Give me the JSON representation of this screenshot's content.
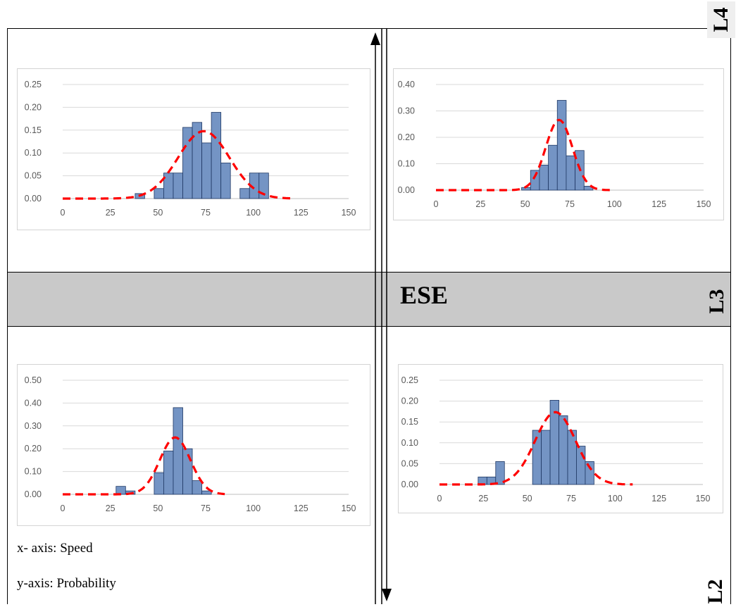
{
  "band_label": "ESE",
  "side_labels": {
    "top": "L4",
    "middle": "L3",
    "bottom": "L2"
  },
  "notes": {
    "x_axis": "x- axis: Speed",
    "y_axis": "y-axis: Probability"
  },
  "colors": {
    "bar_fill": "#7494c4",
    "bar_stroke": "#1f3864",
    "curve": "#ff0000",
    "grid": "#d9d9d9",
    "band": "#c9c9c9"
  },
  "chart_data": [
    {
      "type": "bar",
      "panel": "top-left",
      "bin_width": 5,
      "x_ticks": [
        "0",
        "25",
        "50",
        "75",
        "100",
        "125",
        "150"
      ],
      "xlim": [
        0,
        150
      ],
      "y_ticks": [
        "0.00",
        "0.05",
        "0.10",
        "0.15",
        "0.20",
        "0.25"
      ],
      "ylim": [
        0,
        0.25
      ],
      "bins": [
        {
          "x": 38,
          "y": 0.011
        },
        {
          "x": 48,
          "y": 0.022
        },
        {
          "x": 53,
          "y": 0.056
        },
        {
          "x": 58,
          "y": 0.056
        },
        {
          "x": 63,
          "y": 0.156
        },
        {
          "x": 68,
          "y": 0.167
        },
        {
          "x": 73,
          "y": 0.122
        },
        {
          "x": 78,
          "y": 0.189
        },
        {
          "x": 83,
          "y": 0.078
        },
        {
          "x": 88,
          "y": 0.0
        },
        {
          "x": 93,
          "y": 0.022
        },
        {
          "x": 98,
          "y": 0.0
        },
        {
          "x": 98,
          "y": 0.056
        },
        {
          "x": 103,
          "y": 0.056
        }
      ],
      "curve": {
        "mean": 74,
        "sd": 13.5,
        "x": [
          0,
          120
        ]
      }
    },
    {
      "type": "bar",
      "panel": "top-right",
      "bin_width": 5,
      "x_ticks": [
        "0",
        "25",
        "50",
        "75",
        "100",
        "125",
        "150"
      ],
      "xlim": [
        0,
        150
      ],
      "y_ticks": [
        "0.00",
        "0.10",
        "0.20",
        "0.30",
        "0.40"
      ],
      "ylim": [
        0,
        0.4
      ],
      "bins": [
        {
          "x": 48,
          "y": 0.01
        },
        {
          "x": 53,
          "y": 0.075
        },
        {
          "x": 58,
          "y": 0.095
        },
        {
          "x": 63,
          "y": 0.17
        },
        {
          "x": 68,
          "y": 0.34
        },
        {
          "x": 73,
          "y": 0.13
        },
        {
          "x": 78,
          "y": 0.15
        },
        {
          "x": 83,
          "y": 0.015
        }
      ],
      "curve": {
        "mean": 69,
        "sd": 7.5,
        "x": [
          0,
          100
        ]
      }
    },
    {
      "type": "bar",
      "panel": "bottom-left",
      "bin_width": 5,
      "x_ticks": [
        "0",
        "25",
        "50",
        "75",
        "100",
        "125",
        "150"
      ],
      "xlim": [
        0,
        150
      ],
      "y_ticks": [
        "0.00",
        "0.10",
        "0.20",
        "0.30",
        "0.40",
        "0.50"
      ],
      "ylim": [
        0,
        0.5
      ],
      "bins": [
        {
          "x": 28,
          "y": 0.035
        },
        {
          "x": 33,
          "y": 0.015
        },
        {
          "x": 48,
          "y": 0.095
        },
        {
          "x": 53,
          "y": 0.19
        },
        {
          "x": 58,
          "y": 0.38
        },
        {
          "x": 63,
          "y": 0.2
        },
        {
          "x": 68,
          "y": 0.06
        },
        {
          "x": 73,
          "y": 0.015
        }
      ],
      "curve": {
        "mean": 59,
        "sd": 8,
        "x": [
          0,
          85
        ]
      }
    },
    {
      "type": "bar",
      "panel": "bottom-right",
      "bin_width": 5,
      "x_ticks": [
        "0",
        "25",
        "50",
        "75",
        "100",
        "125",
        "150"
      ],
      "xlim": [
        0,
        150
      ],
      "y_ticks": [
        "0.00",
        "0.05",
        "0.10",
        "0.15",
        "0.20",
        "0.25"
      ],
      "ylim": [
        0,
        0.25
      ],
      "bins": [
        {
          "x": 22,
          "y": 0.018
        },
        {
          "x": 27,
          "y": 0.018
        },
        {
          "x": 32,
          "y": 0.055
        },
        {
          "x": 53,
          "y": 0.13
        },
        {
          "x": 58,
          "y": 0.13
        },
        {
          "x": 63,
          "y": 0.202
        },
        {
          "x": 68,
          "y": 0.165
        },
        {
          "x": 73,
          "y": 0.13
        },
        {
          "x": 78,
          "y": 0.092
        },
        {
          "x": 83,
          "y": 0.055
        }
      ],
      "curve": {
        "mean": 66,
        "sd": 11.5,
        "x": [
          0,
          110
        ]
      }
    }
  ]
}
